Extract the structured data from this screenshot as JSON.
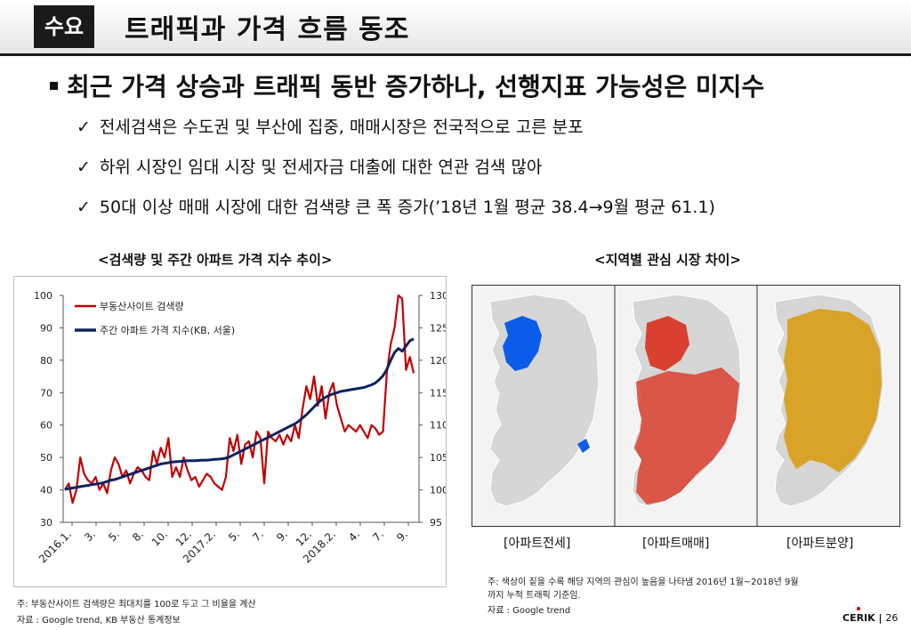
{
  "header": {
    "tag": "수요",
    "title": "트래픽과 가격 흐름 동조"
  },
  "headline": "최근 가격 상승과 트래픽 동반 증가하나, 선행지표 가능성은 미지수",
  "bullets": [
    "전세검색은 수도권 및 부산에 집중, 매매시장은 전국적으로 고른 분포",
    "하위 시장인 임대 시장 및 전세자금 대출에 대한 연관 검색 많아",
    "50대 이상 매매 시장에 대한 검색량 큰 폭 증가(’18년 1월 평균 38.4→9월 평균 61.1)"
  ],
  "check_mark": "✓",
  "left_title": "<검색량 및 주간 아파트 가격 지수 추이>",
  "right_title": "<지역별 관심 시장 차이>",
  "chart_data": {
    "type": "line",
    "legend_position": "top-left",
    "grid": false,
    "x_tick_labels": [
      "2016.1.",
      "3.",
      "5.",
      "8.",
      "10.",
      "12.",
      "2017.2.",
      "5.",
      "7.",
      "9.",
      "12.",
      "2018.2.",
      "4.",
      "7.",
      "9."
    ],
    "y_left": {
      "min": 30,
      "max": 100,
      "ticks": [
        30,
        40,
        50,
        60,
        70,
        80,
        90,
        100
      ]
    },
    "y_right": {
      "min": 95,
      "max": 130,
      "ticks": [
        95,
        100,
        105,
        110,
        115,
        120,
        125,
        130
      ]
    },
    "series": [
      {
        "name": "부동산사이트 검색량",
        "axis": "left",
        "color": "#c00000",
        "values": [
          40,
          42,
          36,
          40,
          50,
          45,
          43,
          42,
          44,
          40,
          42,
          39,
          46,
          50,
          48,
          44,
          46,
          42,
          45,
          47,
          46,
          44,
          43,
          52,
          48,
          53,
          50,
          56,
          44,
          47,
          44,
          50,
          46,
          43,
          44,
          41,
          43,
          45,
          44,
          42,
          41,
          40,
          44,
          56,
          52,
          57,
          48,
          54,
          55,
          50,
          58,
          56,
          42,
          58,
          56,
          55,
          57,
          54,
          57,
          55,
          60,
          56,
          65,
          72,
          68,
          75,
          66,
          72,
          62,
          70,
          73,
          66,
          62,
          58,
          60,
          59,
          58,
          60,
          58,
          56,
          60,
          59,
          57,
          58,
          76,
          85,
          90,
          100,
          99,
          77,
          81,
          76
        ]
      },
      {
        "name": "주간 아파트 가격 지수(KB, 서울)",
        "axis": "right",
        "color": "#0d2260",
        "values": [
          100.1,
          100.2,
          100.3,
          100.4,
          100.5,
          100.6,
          100.7,
          100.8,
          100.9,
          101.0,
          101.1,
          101.3,
          101.5,
          101.6,
          101.8,
          102.0,
          102.2,
          102.4,
          102.6,
          102.8,
          103.0,
          103.2,
          103.4,
          103.6,
          103.8,
          104.0,
          104.1,
          104.2,
          104.3,
          104.35,
          104.4,
          104.45,
          104.5,
          104.5,
          104.5,
          104.55,
          104.6,
          104.6,
          104.65,
          104.7,
          104.75,
          104.8,
          104.9,
          105.1,
          105.4,
          105.7,
          106.0,
          106.3,
          106.6,
          106.9,
          107.2,
          107.5,
          107.8,
          108.1,
          108.4,
          108.7,
          109.0,
          109.3,
          109.6,
          109.9,
          110.2,
          110.6,
          111.1,
          111.6,
          112.2,
          112.8,
          113.4,
          113.9,
          114.3,
          114.6,
          114.8,
          115.0,
          115.2,
          115.3,
          115.4,
          115.5,
          115.6,
          115.7,
          115.8,
          116.0,
          116.2,
          116.5,
          117.0,
          117.6,
          118.6,
          120.0,
          121.2,
          121.8,
          121.4,
          122.2,
          123.0,
          123.3
        ]
      }
    ]
  },
  "maps": [
    {
      "label": "[아파트전세]",
      "color": "#0b5ce8"
    },
    {
      "label": "[아파트매매]",
      "color": "#d9402f"
    },
    {
      "label": "[아파트분양]",
      "color": "#d9a327"
    }
  ],
  "map_base_color": "#d6d6d6",
  "notes": {
    "left_1": "주: 부동산사이트 검색량은 최대치를 100로 두고 그 비율을 계산",
    "left_2": "자료 : Google trend, KB 부동산 통계정보",
    "right_1": "주: 색상이 짙을 수록 해당 지역의 관심이 높음을 나타냄 2016년 1월~2018년 9월",
    "right_2": "까지 누적 트래픽 기준임.",
    "right_3": "자료 : Google trend"
  },
  "footer": {
    "brand": "CERIK",
    "separator": "|",
    "page": "26"
  }
}
